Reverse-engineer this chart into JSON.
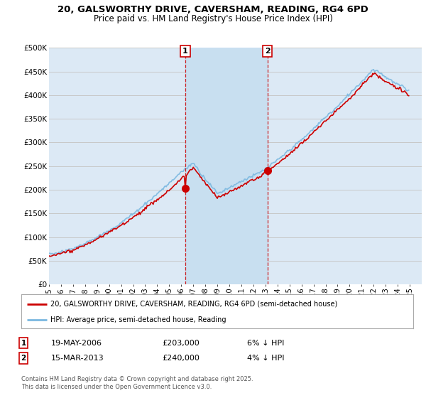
{
  "title_line1": "20, GALSWORTHY DRIVE, CAVERSHAM, READING, RG4 6PD",
  "title_line2": "Price paid vs. HM Land Registry's House Price Index (HPI)",
  "background_color": "#ffffff",
  "plot_bg_color": "#dce9f5",
  "shade_color": "#c8dff0",
  "grid_color": "#c8c8c8",
  "hpi_color": "#7ab8e0",
  "price_color": "#cc0000",
  "marker1_label": "19-MAY-2006",
  "marker1_price": 203000,
  "marker1_pct": "6% ↓ HPI",
  "marker2_label": "15-MAR-2013",
  "marker2_price": 240000,
  "marker2_pct": "4% ↓ HPI",
  "legend_line1": "20, GALSWORTHY DRIVE, CAVERSHAM, READING, RG4 6PD (semi-detached house)",
  "legend_line2": "HPI: Average price, semi-detached house, Reading",
  "footer": "Contains HM Land Registry data © Crown copyright and database right 2025.\nThis data is licensed under the Open Government Licence v3.0.",
  "ylim": [
    0,
    500000
  ],
  "yticks": [
    0,
    50000,
    100000,
    150000,
    200000,
    250000,
    300000,
    350000,
    400000,
    450000,
    500000
  ],
  "xstart": 1995,
  "xend": 2026
}
